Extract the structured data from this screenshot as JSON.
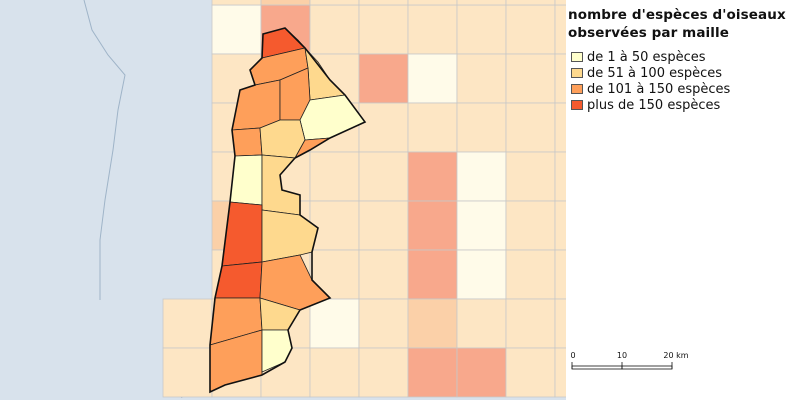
{
  "legend": {
    "title_line1": "nombre d'espèces d'oiseaux",
    "title_line2": "observées par maille",
    "items": [
      {
        "label": "de 1 à 50 espèces",
        "color": "#ffffcc"
      },
      {
        "label": "de 51 à 100 espèces",
        "color": "#fed98e"
      },
      {
        "label": "de 101 à 150 espèces",
        "color": "#fe9f5a"
      },
      {
        "label": "plus de 150 espèces",
        "color": "#f55a2e"
      }
    ]
  },
  "scale": {
    "labels": [
      "0",
      "10",
      "20 km"
    ]
  },
  "colors": {
    "sea": "#d8e2ec",
    "grid_line": "#b0b0b0",
    "commune_border": "#222222"
  }
}
